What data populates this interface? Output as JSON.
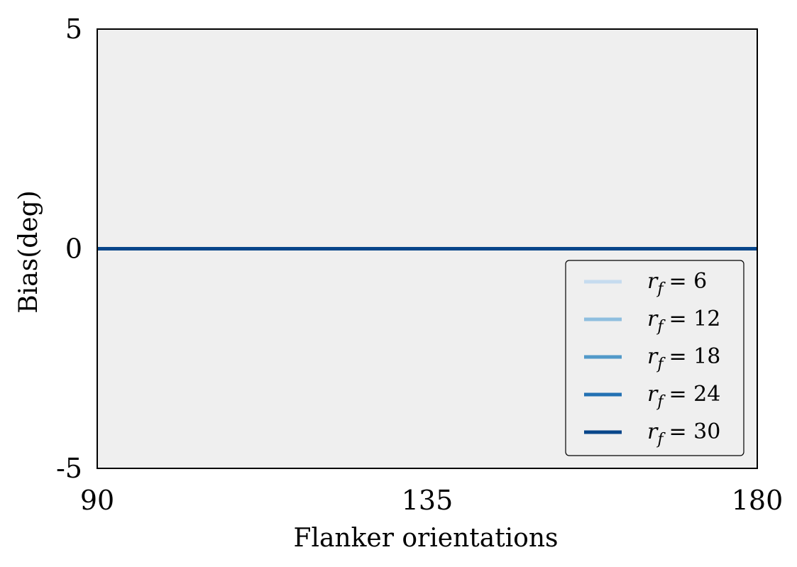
{
  "chart_data": {
    "type": "line",
    "title": "",
    "xlabel": "Flanker orientations",
    "ylabel": "Bias(deg)",
    "xlim": [
      90,
      180
    ],
    "ylim": [
      -5,
      5
    ],
    "xticks": [
      90,
      135,
      180
    ],
    "yticks": [
      -5,
      0,
      5
    ],
    "xtick_labels": [
      "90",
      "135",
      "180"
    ],
    "ytick_labels": [
      "-5",
      "0",
      "5"
    ],
    "grid": false,
    "background": "#efefef",
    "legend_position": "lower-right",
    "series": [
      {
        "name": "r_f = 6",
        "label_var": "r",
        "label_sub": "f",
        "label_value": "= 6",
        "color": "#c6dbef",
        "x": [
          90,
          180
        ],
        "y": [
          0,
          0
        ]
      },
      {
        "name": "r_f = 12",
        "label_var": "r",
        "label_sub": "f",
        "label_value": "= 12",
        "color": "#8fbfdf",
        "x": [
          90,
          180
        ],
        "y": [
          0,
          0
        ]
      },
      {
        "name": "r_f = 18",
        "label_var": "r",
        "label_sub": "f",
        "label_value": "= 18",
        "color": "#5199c9",
        "x": [
          90,
          180
        ],
        "y": [
          0,
          0
        ]
      },
      {
        "name": "r_f = 24",
        "label_var": "r",
        "label_sub": "f",
        "label_value": "= 24",
        "color": "#2371b3",
        "x": [
          90,
          180
        ],
        "y": [
          0,
          0
        ]
      },
      {
        "name": "r_f = 30",
        "label_var": "r",
        "label_sub": "f",
        "label_value": "= 30",
        "color": "#08468a",
        "x": [
          90,
          180
        ],
        "y": [
          0,
          0
        ]
      }
    ]
  }
}
